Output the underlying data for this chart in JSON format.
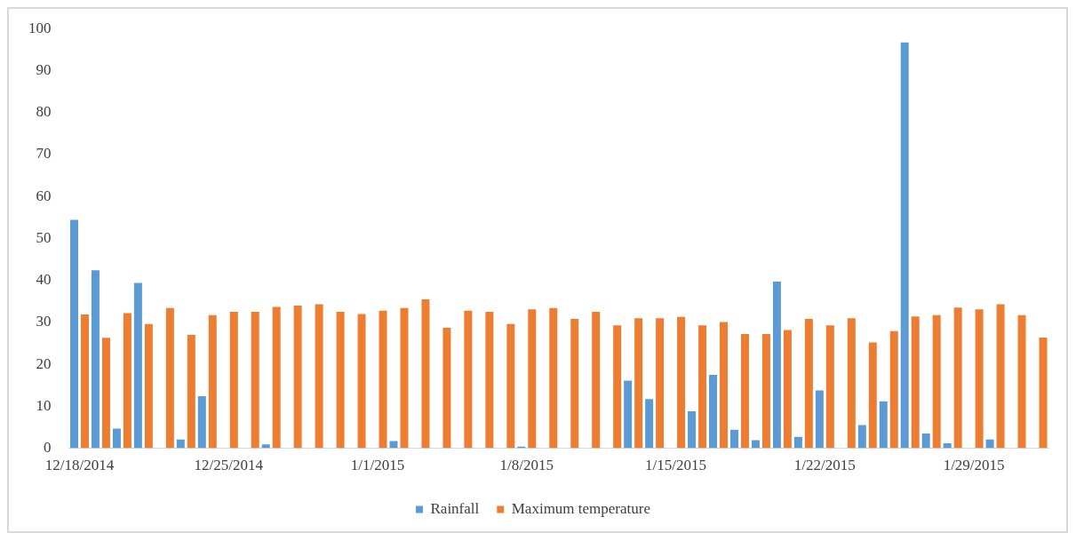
{
  "chart_data": {
    "type": "bar",
    "categories": [
      "12/18/2014",
      null,
      null,
      null,
      null,
      null,
      null,
      "12/25/2014",
      null,
      null,
      null,
      null,
      null,
      null,
      "1/1/2015",
      null,
      null,
      null,
      null,
      null,
      null,
      "1/8/2015",
      null,
      null,
      null,
      null,
      null,
      null,
      "1/15/2015",
      null,
      null,
      null,
      null,
      null,
      null,
      "1/22/2015",
      null,
      null,
      null,
      null,
      null,
      null,
      "1/29/2015",
      null,
      null,
      null
    ],
    "series": [
      {
        "name": "Rainfall",
        "color": "#5b9bd5",
        "values": [
          54.4,
          42.4,
          4.7,
          39.4,
          0,
          2.1,
          12.4,
          0,
          0,
          0.9,
          0,
          0,
          0,
          0,
          0,
          1.7,
          0,
          0,
          0,
          0,
          0,
          0.4,
          0,
          0,
          0,
          0,
          16.1,
          11.7,
          0,
          8.8,
          17.5,
          4.4,
          1.9,
          39.7,
          2.7,
          13.8,
          0,
          5.5,
          11.2,
          96.7,
          3.5,
          1.2,
          0,
          2.1,
          0,
          0
        ]
      },
      {
        "name": "Maximum temperature",
        "color": "#ed7d31",
        "values": [
          31.9,
          26.3,
          32.2,
          29.6,
          33.4,
          27.0,
          31.7,
          32.5,
          32.5,
          33.7,
          34.0,
          34.3,
          32.5,
          32.0,
          32.8,
          33.4,
          35.5,
          28.7,
          32.8,
          32.5,
          29.6,
          33.1,
          33.4,
          30.8,
          32.5,
          29.3,
          31.0,
          31.0,
          31.3,
          29.3,
          30.1,
          27.2,
          27.2,
          28.2,
          30.8,
          29.3,
          31.0,
          25.2,
          27.9,
          31.4,
          31.7,
          33.5,
          33.1,
          34.3,
          31.7,
          26.4
        ]
      }
    ],
    "ylim": [
      0,
      100
    ],
    "yticks": [
      0,
      10,
      20,
      30,
      40,
      50,
      60,
      70,
      80,
      90,
      100
    ],
    "grid": false,
    "legend": "bottom"
  }
}
